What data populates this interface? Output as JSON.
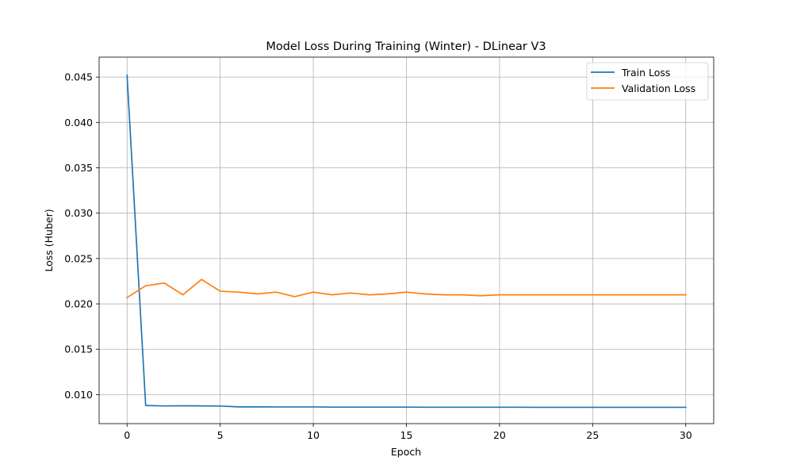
{
  "chart_data": {
    "type": "line",
    "title": "Model Loss During Training (Winter) - DLinear V3",
    "xlabel": "Epoch",
    "ylabel": "Loss (Huber)",
    "xlim": [
      -1.5,
      31.5
    ],
    "ylim": [
      0.0068,
      0.0472
    ],
    "xticks": [
      0,
      5,
      10,
      15,
      20,
      25,
      30
    ],
    "yticks": [
      0.01,
      0.015,
      0.02,
      0.025,
      0.03,
      0.035,
      0.04,
      0.045
    ],
    "xtick_labels": [
      "0",
      "5",
      "10",
      "15",
      "20",
      "25",
      "30"
    ],
    "ytick_labels": [
      "0.010",
      "0.015",
      "0.020",
      "0.025",
      "0.030",
      "0.035",
      "0.040",
      "0.045"
    ],
    "grid": true,
    "legend_position": "top-right",
    "x": [
      0,
      1,
      2,
      3,
      4,
      5,
      6,
      7,
      8,
      9,
      10,
      11,
      12,
      13,
      14,
      15,
      16,
      17,
      18,
      19,
      20,
      21,
      22,
      23,
      24,
      25,
      26,
      27,
      28,
      29,
      30
    ],
    "series": [
      {
        "name": "Train Loss",
        "color": "#1f77b4",
        "values": [
          0.0452,
          0.0088,
          0.00875,
          0.00877,
          0.00876,
          0.00874,
          0.00865,
          0.00865,
          0.00864,
          0.00864,
          0.00864,
          0.00862,
          0.00862,
          0.00862,
          0.00862,
          0.00862,
          0.00861,
          0.00861,
          0.00861,
          0.00861,
          0.00861,
          0.00861,
          0.0086,
          0.0086,
          0.0086,
          0.0086,
          0.0086,
          0.0086,
          0.0086,
          0.0086,
          0.0086
        ]
      },
      {
        "name": "Validation Loss",
        "color": "#ff7f0e",
        "values": [
          0.0207,
          0.022,
          0.0223,
          0.021,
          0.0227,
          0.0214,
          0.0213,
          0.0211,
          0.0213,
          0.0208,
          0.0213,
          0.021,
          0.0212,
          0.021,
          0.0211,
          0.0213,
          0.0211,
          0.021,
          0.021,
          0.0209,
          0.021,
          0.021,
          0.021,
          0.021,
          0.021,
          0.021,
          0.021,
          0.021,
          0.021,
          0.021,
          0.021
        ]
      }
    ]
  }
}
